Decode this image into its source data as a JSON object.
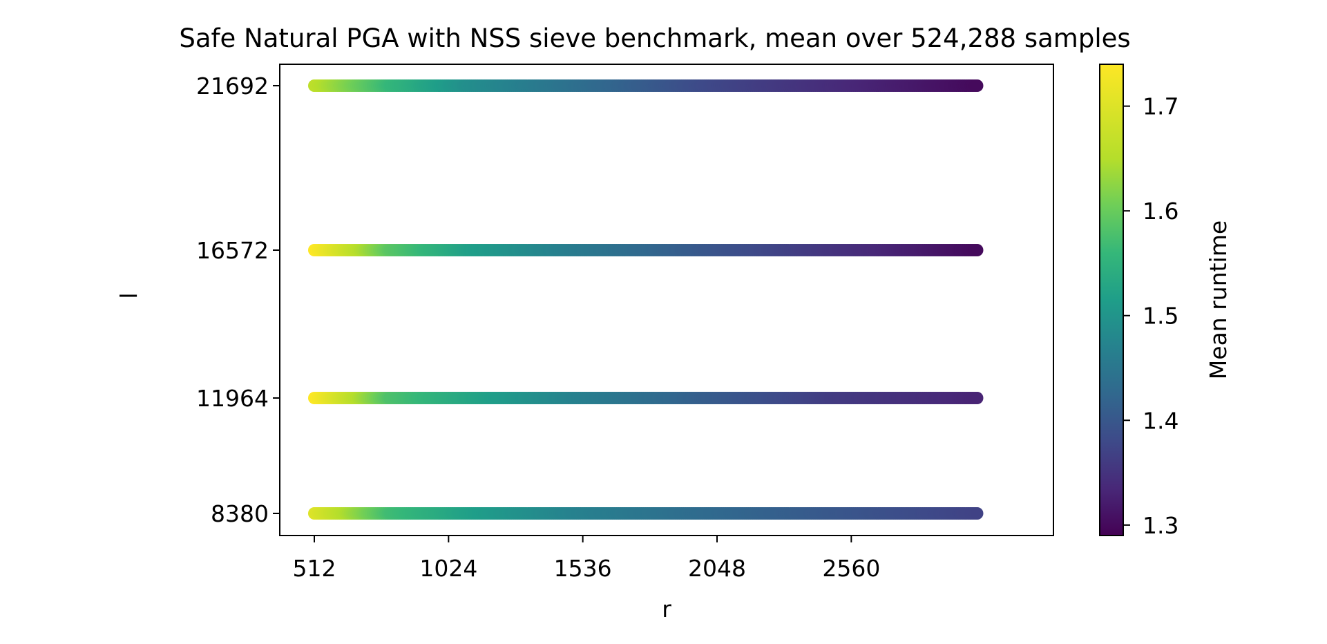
{
  "chart_data": {
    "type": "scatter",
    "title": "Safe Natural PGA with NSS sieve benchmark, mean over 524,288 samples",
    "xlabel": "r",
    "ylabel": "l",
    "x_ticks": [
      512,
      1024,
      1536,
      2048,
      2560
    ],
    "y_ticks": [
      8380,
      11964,
      16572,
      21692
    ],
    "x_range": [
      512,
      3040
    ],
    "y_categories": [
      8380,
      11964,
      16572,
      21692
    ],
    "colorbar": {
      "label": "Mean runtime",
      "ticks": [
        1.3,
        1.4,
        1.5,
        1.6,
        1.7
      ],
      "range": [
        1.29,
        1.74
      ],
      "colormap": "viridis"
    },
    "series": [
      {
        "l": 8380,
        "runtime_at_r": [
          [
            512,
            1.7
          ],
          [
            800,
            1.57
          ],
          [
            1100,
            1.52
          ],
          [
            1500,
            1.47
          ],
          [
            2000,
            1.43
          ],
          [
            2500,
            1.4
          ],
          [
            3040,
            1.37
          ]
        ]
      },
      {
        "l": 11964,
        "runtime_at_r": [
          [
            512,
            1.74
          ],
          [
            800,
            1.58
          ],
          [
            1100,
            1.53
          ],
          [
            1500,
            1.47
          ],
          [
            2000,
            1.41
          ],
          [
            2500,
            1.36
          ],
          [
            3040,
            1.33
          ]
        ]
      },
      {
        "l": 16572,
        "runtime_at_r": [
          [
            512,
            1.74
          ],
          [
            800,
            1.59
          ],
          [
            1100,
            1.52
          ],
          [
            1500,
            1.46
          ],
          [
            2000,
            1.4
          ],
          [
            2500,
            1.35
          ],
          [
            3040,
            1.3
          ]
        ]
      },
      {
        "l": 21692,
        "runtime_at_r": [
          [
            512,
            1.66
          ],
          [
            800,
            1.56
          ],
          [
            1100,
            1.49
          ],
          [
            1500,
            1.44
          ],
          [
            2000,
            1.38
          ],
          [
            2500,
            1.34
          ],
          [
            3040,
            1.3
          ]
        ]
      }
    ]
  }
}
